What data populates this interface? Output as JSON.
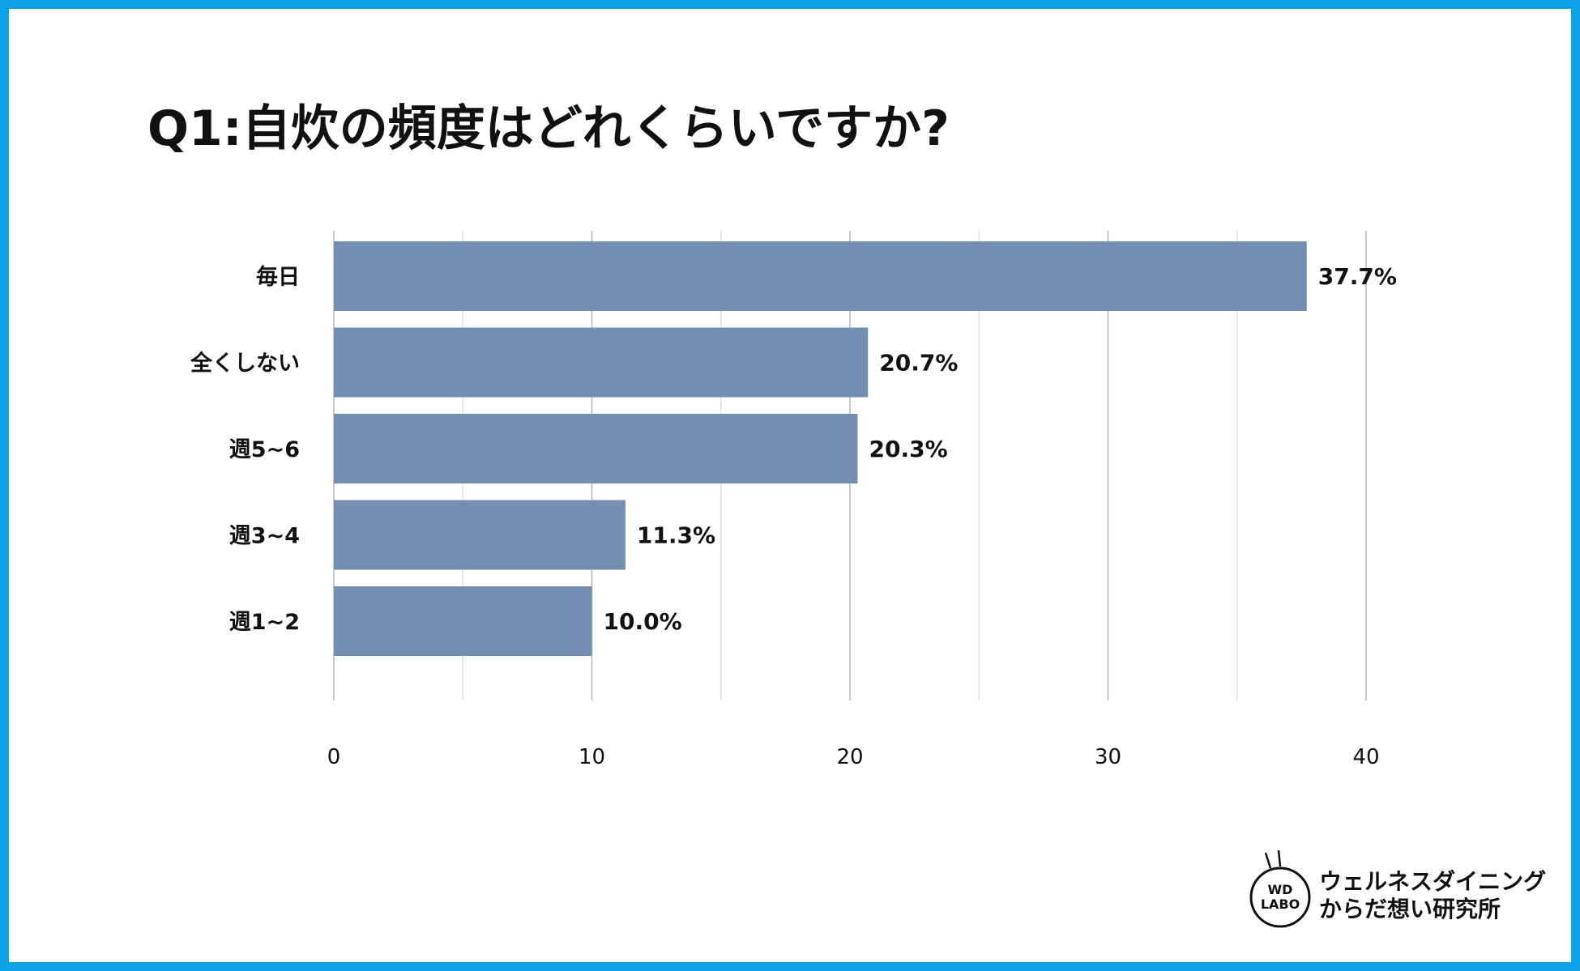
{
  "title": "Q1:自炊の頻度はどれくらいですか?",
  "colors": {
    "border": "#0ea3e8",
    "bar": "#728fb3",
    "grid_major": "#b5b5b5",
    "grid_minor": "#e2e2e2"
  },
  "chart_data": {
    "type": "bar",
    "orientation": "horizontal",
    "title": "Q1:自炊の頻度はどれくらいですか?",
    "categories": [
      "毎日",
      "全くしない",
      "週5~6",
      "週3~4",
      "週1~2"
    ],
    "values": [
      37.7,
      20.7,
      20.3,
      11.3,
      10.0
    ],
    "value_labels": [
      "37.7%",
      "20.7%",
      "20.3%",
      "11.3%",
      "10.0%"
    ],
    "xlim": [
      0,
      40
    ],
    "xticks": [
      0,
      10,
      20,
      30,
      40
    ],
    "grid": true,
    "legend": "none"
  },
  "logo": {
    "badge_line1": "WD",
    "badge_line2": "LABO",
    "line1": "ウェルネスダイニング",
    "line2": "からだ想い研究所"
  }
}
